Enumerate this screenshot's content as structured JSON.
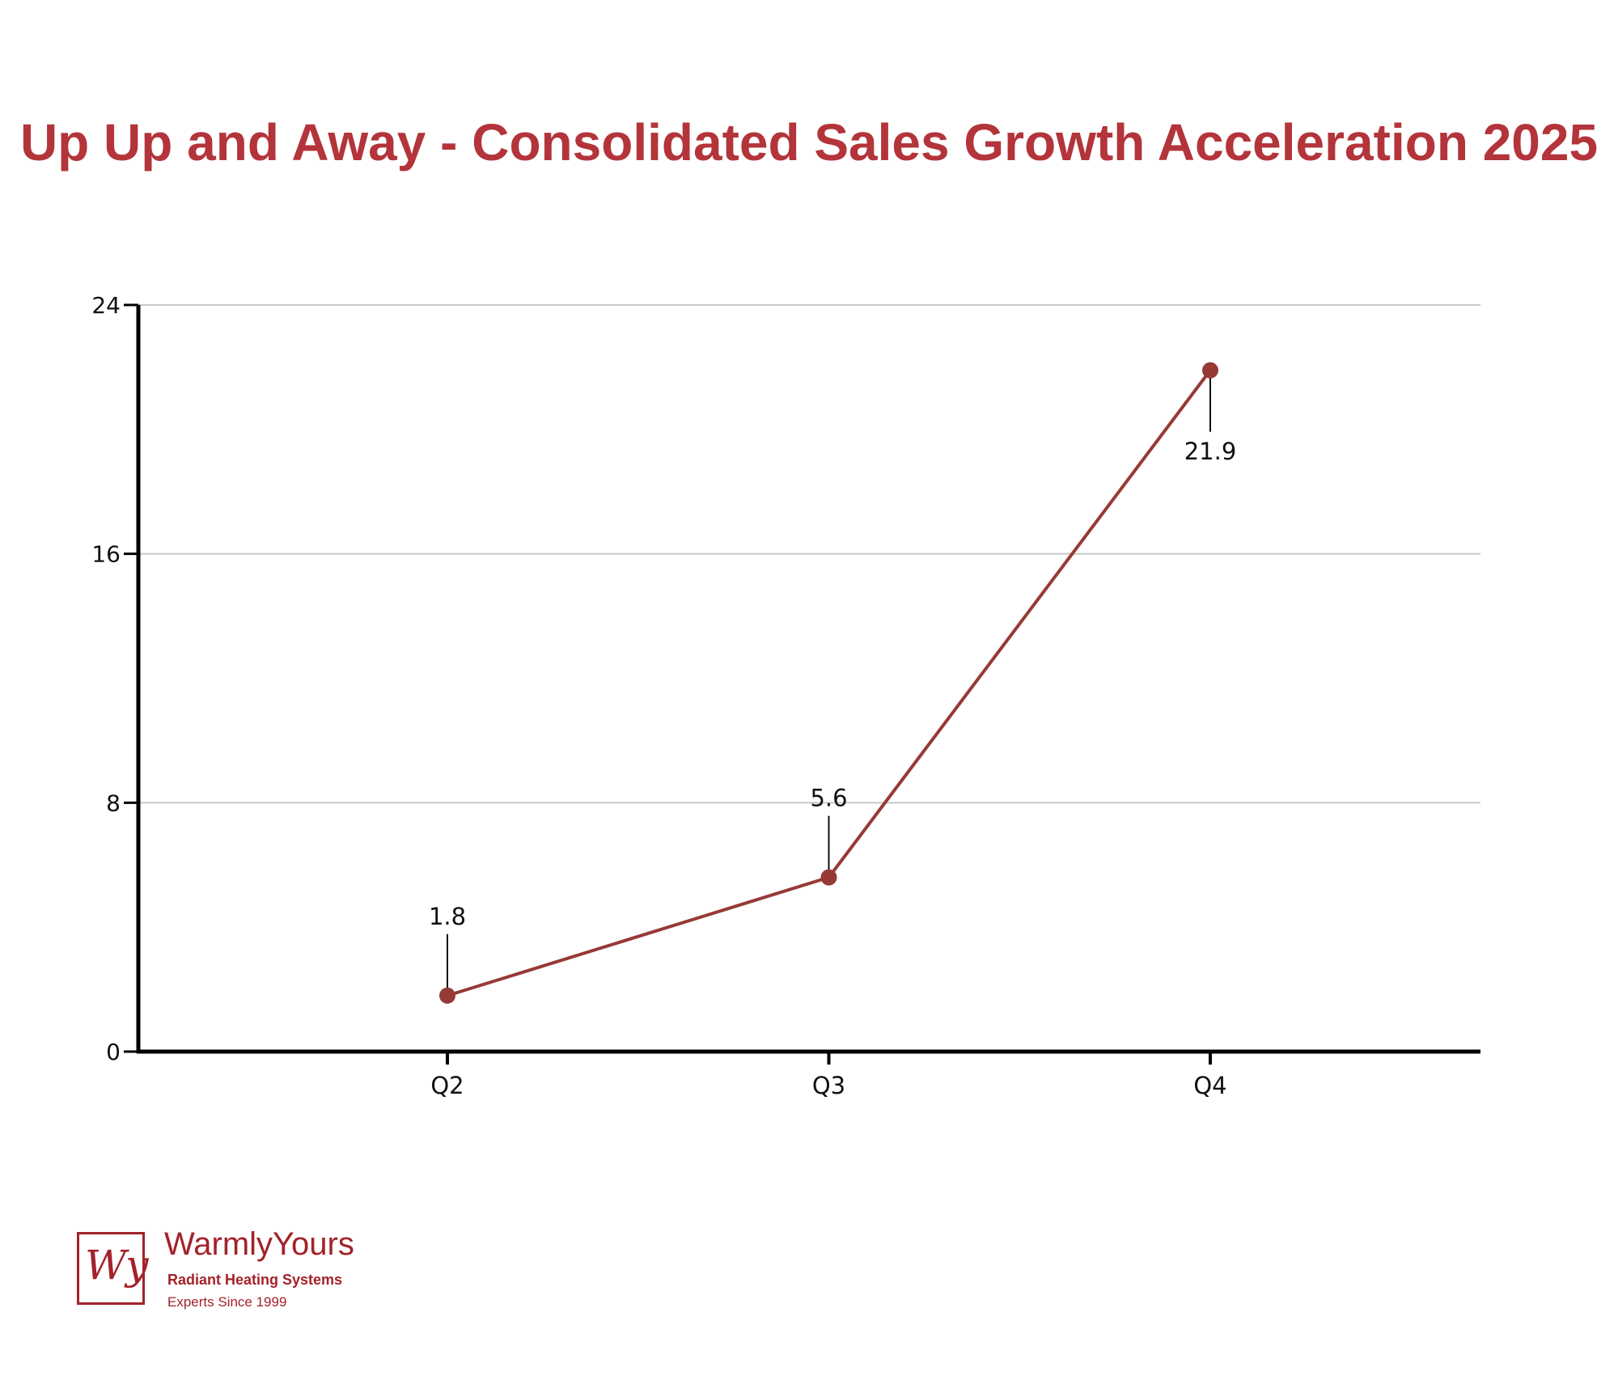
{
  "chart_data": {
    "type": "line",
    "title": "Up Up and Away - Consolidated Sales Growth Acceleration 2025",
    "categories": [
      "Q2",
      "Q3",
      "Q4"
    ],
    "values": [
      1.8,
      5.6,
      21.9
    ],
    "data_labels": [
      "1.8",
      "5.6",
      "21.9"
    ],
    "xlabel": "",
    "ylabel": "",
    "ylim": [
      0,
      24
    ],
    "yticks": [
      0,
      8,
      16,
      24
    ],
    "ytick_labels": [
      "0",
      "8",
      "16",
      "24"
    ],
    "grid": "horizontal",
    "legend": "none",
    "colors": {
      "line": "#963a36",
      "title": "#b3343a",
      "grid": "#c8c8c8",
      "axis": "#000000"
    }
  },
  "logo": {
    "monogram": "Wy",
    "name": "WarmlyYours",
    "tagline": "Radiant Heating Systems",
    "since": "Experts Since 1999",
    "color": "#a3222a"
  }
}
